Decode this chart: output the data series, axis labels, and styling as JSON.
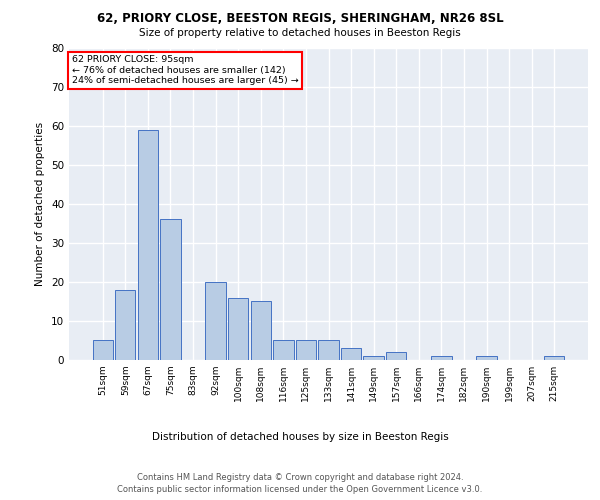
{
  "title1": "62, PRIORY CLOSE, BEESTON REGIS, SHERINGHAM, NR26 8SL",
  "title2": "Size of property relative to detached houses in Beeston Regis",
  "xlabel": "Distribution of detached houses by size in Beeston Regis",
  "ylabel": "Number of detached properties",
  "categories": [
    "51sqm",
    "59sqm",
    "67sqm",
    "75sqm",
    "83sqm",
    "92sqm",
    "100sqm",
    "108sqm",
    "116sqm",
    "125sqm",
    "133sqm",
    "141sqm",
    "149sqm",
    "157sqm",
    "166sqm",
    "174sqm",
    "182sqm",
    "190sqm",
    "199sqm",
    "207sqm",
    "215sqm"
  ],
  "values": [
    5,
    18,
    59,
    36,
    0,
    20,
    16,
    15,
    5,
    5,
    5,
    3,
    1,
    2,
    0,
    1,
    0,
    1,
    0,
    0,
    1
  ],
  "bar_color": "#b8cce4",
  "bar_edge_color": "#4472c4",
  "background_color": "#e8edf4",
  "grid_color": "#ffffff",
  "ylim": [
    0,
    80
  ],
  "yticks": [
    0,
    10,
    20,
    30,
    40,
    50,
    60,
    70,
    80
  ],
  "annotation_line1": "62 PRIORY CLOSE: 95sqm",
  "annotation_line2": "← 76% of detached houses are smaller (142)",
  "annotation_line3": "24% of semi-detached houses are larger (45) →",
  "footer1": "Contains HM Land Registry data © Crown copyright and database right 2024.",
  "footer2": "Contains public sector information licensed under the Open Government Licence v3.0."
}
